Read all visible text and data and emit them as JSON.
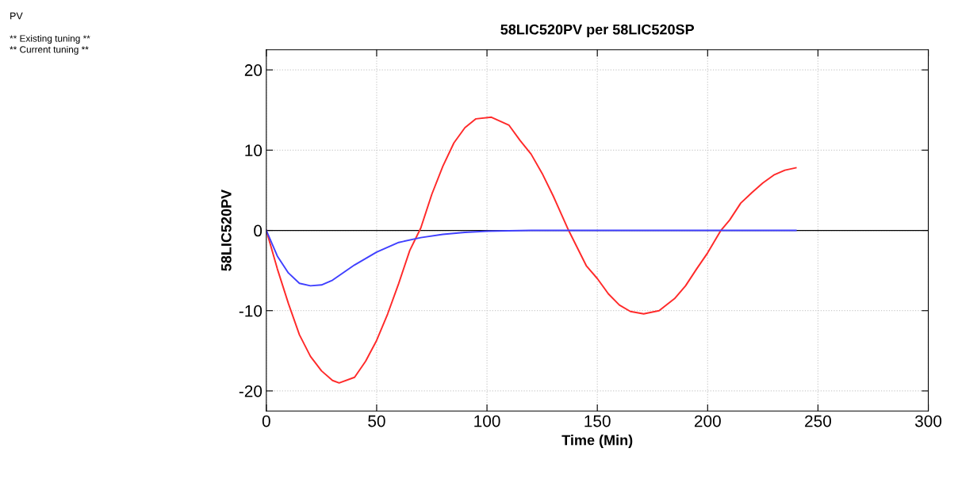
{
  "chart_data": {
    "type": "line",
    "title": "58LIC520PV per 58LIC520SP",
    "xlabel": "Time (Min)",
    "ylabel": "58LIC520PV",
    "annotations": [
      "PV",
      "** Existing tuning **",
      "** Current tuning **"
    ],
    "series": [
      {
        "color": "#ff2a2a",
        "x": [
          0,
          5,
          10,
          15,
          20,
          25,
          30,
          33,
          40,
          45,
          50,
          55,
          60,
          65,
          70,
          75,
          80,
          85,
          90,
          95,
          102,
          110,
          115,
          120,
          125,
          130,
          137,
          145,
          150,
          155,
          160,
          165,
          171,
          178,
          185,
          190,
          195,
          200,
          206,
          210,
          215,
          220,
          225,
          230,
          235,
          240
        ],
        "values": [
          0,
          -4.8,
          -9.1,
          -13,
          -15.7,
          -17.5,
          -18.7,
          -19,
          -18.3,
          -16.3,
          -13.7,
          -10.4,
          -6.6,
          -2.5,
          0.3,
          4.5,
          8,
          10.9,
          12.8,
          13.9,
          14.1,
          13.1,
          11.2,
          9.5,
          7.1,
          4.3,
          0,
          -4.4,
          -6,
          -7.9,
          -9.3,
          -10.1,
          -10.4,
          -10,
          -8.5,
          -6.9,
          -4.8,
          -2.8,
          0,
          1.3,
          3.4,
          4.7,
          5.9,
          6.9,
          7.5,
          7.8
        ]
      },
      {
        "color": "#4040ff",
        "x": [
          0,
          5,
          10,
          15,
          20,
          25,
          30,
          40,
          50,
          60,
          70,
          80,
          90,
          100,
          120,
          240
        ],
        "values": [
          0,
          -3.2,
          -5.3,
          -6.6,
          -6.9,
          -6.8,
          -6.2,
          -4.3,
          -2.7,
          -1.5,
          -0.9,
          -0.5,
          -0.25,
          -0.1,
          0,
          0
        ]
      }
    ],
    "xlim": [
      0,
      300
    ],
    "xticks": [
      0,
      50,
      100,
      150,
      200,
      250,
      300
    ],
    "ylim": [
      -22.5,
      22.5
    ],
    "yticks": [
      -20,
      -10,
      0,
      10,
      20
    ],
    "ref_lines": [
      {
        "axis": "y",
        "value": 0,
        "color": "#000000"
      }
    ],
    "grid": true,
    "legend": false
  }
}
